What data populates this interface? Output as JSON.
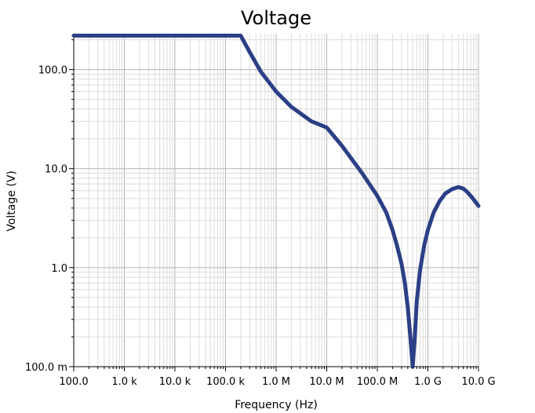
{
  "chart_data": {
    "type": "line",
    "title": "Voltage",
    "xlabel": "Frequency (Hz)",
    "ylabel": "Voltage (V)",
    "x_scale": "log",
    "y_scale": "log",
    "xlim": [
      100,
      10000000000
    ],
    "ylim": [
      0.1,
      230
    ],
    "grid": true,
    "x_ticks": [
      {
        "value": 100,
        "label": "100.0"
      },
      {
        "value": 1000,
        "label": "1.0 k"
      },
      {
        "value": 10000,
        "label": "10.0 k"
      },
      {
        "value": 100000,
        "label": "100.0 k"
      },
      {
        "value": 1000000,
        "label": "1.0 M"
      },
      {
        "value": 10000000,
        "label": "10.0 M"
      },
      {
        "value": 100000000,
        "label": "100.0 M"
      },
      {
        "value": 1000000000,
        "label": "1.0 G"
      },
      {
        "value": 10000000000,
        "label": "10.0 G"
      }
    ],
    "y_ticks": [
      {
        "value": 0.1,
        "label": "100.0 m"
      },
      {
        "value": 1,
        "label": "1.0"
      },
      {
        "value": 10,
        "label": "10.0"
      },
      {
        "value": 100,
        "label": "100.0"
      }
    ],
    "series": [
      {
        "color": "#2b3f86",
        "points": [
          [
            100,
            220
          ],
          [
            1000,
            220
          ],
          [
            10000,
            220
          ],
          [
            100000,
            220
          ],
          [
            200000,
            220
          ],
          [
            300000,
            150
          ],
          [
            500000,
            95
          ],
          [
            1000000,
            60
          ],
          [
            2000000,
            42
          ],
          [
            5000000,
            30
          ],
          [
            10000000,
            26
          ],
          [
            20000000,
            17
          ],
          [
            50000000,
            9
          ],
          [
            100000000,
            5.3
          ],
          [
            150000000,
            3.6
          ],
          [
            200000000,
            2.4
          ],
          [
            250000000,
            1.6
          ],
          [
            300000000,
            1.1
          ],
          [
            350000000,
            0.7
          ],
          [
            400000000,
            0.4
          ],
          [
            450000000,
            0.2
          ],
          [
            500000000,
            0.1
          ],
          [
            550000000,
            0.2
          ],
          [
            600000000,
            0.45
          ],
          [
            700000000,
            0.95
          ],
          [
            850000000,
            1.7
          ],
          [
            1000000000,
            2.4
          ],
          [
            1300000000,
            3.6
          ],
          [
            1700000000,
            4.7
          ],
          [
            2200000000,
            5.6
          ],
          [
            3000000000,
            6.2
          ],
          [
            4000000000,
            6.5
          ],
          [
            5000000000,
            6.3
          ],
          [
            6000000000,
            5.8
          ],
          [
            7500000000,
            5.1
          ],
          [
            10000000000,
            4.2
          ]
        ]
      }
    ]
  }
}
